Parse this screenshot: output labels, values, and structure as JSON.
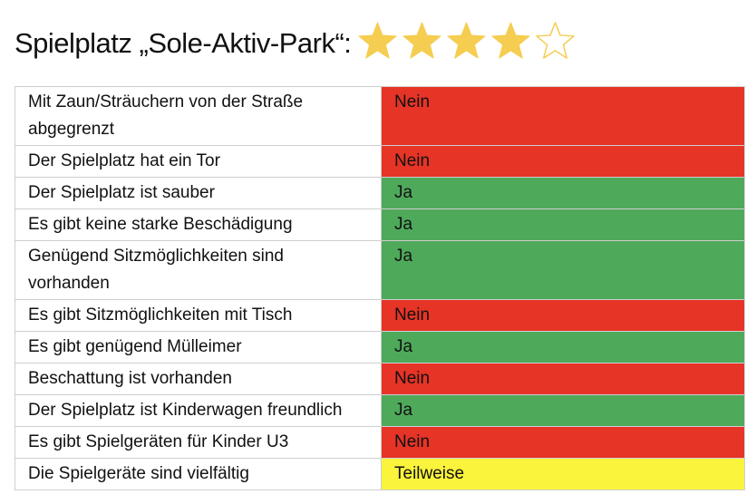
{
  "title": "Spielplatz „Sole-Aktiv-Park“:",
  "rating": {
    "value": 4,
    "max": 5,
    "color": "#f5cd50"
  },
  "colors": {
    "Nein": "#e63427",
    "Ja": "#4fa95b",
    "Teilweise": "#fbf43c"
  },
  "rows": [
    {
      "question": "Mit Zaun/Sträuchern von der Straße abgegrenzt",
      "answer": "Nein"
    },
    {
      "question": "Der Spielplatz hat ein Tor",
      "answer": "Nein"
    },
    {
      "question": "Der Spielplatz ist sauber",
      "answer": "Ja"
    },
    {
      "question": "Es gibt keine starke Beschädigung",
      "answer": "Ja"
    },
    {
      "question": "Genügend Sitzmöglichkeiten sind vorhanden",
      "answer": "Ja"
    },
    {
      "question": "Es gibt Sitzmöglichkeiten mit Tisch",
      "answer": "Nein"
    },
    {
      "question": "Es gibt genügend Mülleimer",
      "answer": "Ja"
    },
    {
      "question": "Beschattung ist vorhanden",
      "answer": "Nein"
    },
    {
      "question": "Der Spielplatz ist Kinderwagen freundlich",
      "answer": "Ja"
    },
    {
      "question": "Es gibt Spielgeräten für Kinder U3",
      "answer": "Nein"
    },
    {
      "question": "Die Spielgeräte sind vielfältig",
      "answer": "Teilweise"
    }
  ]
}
